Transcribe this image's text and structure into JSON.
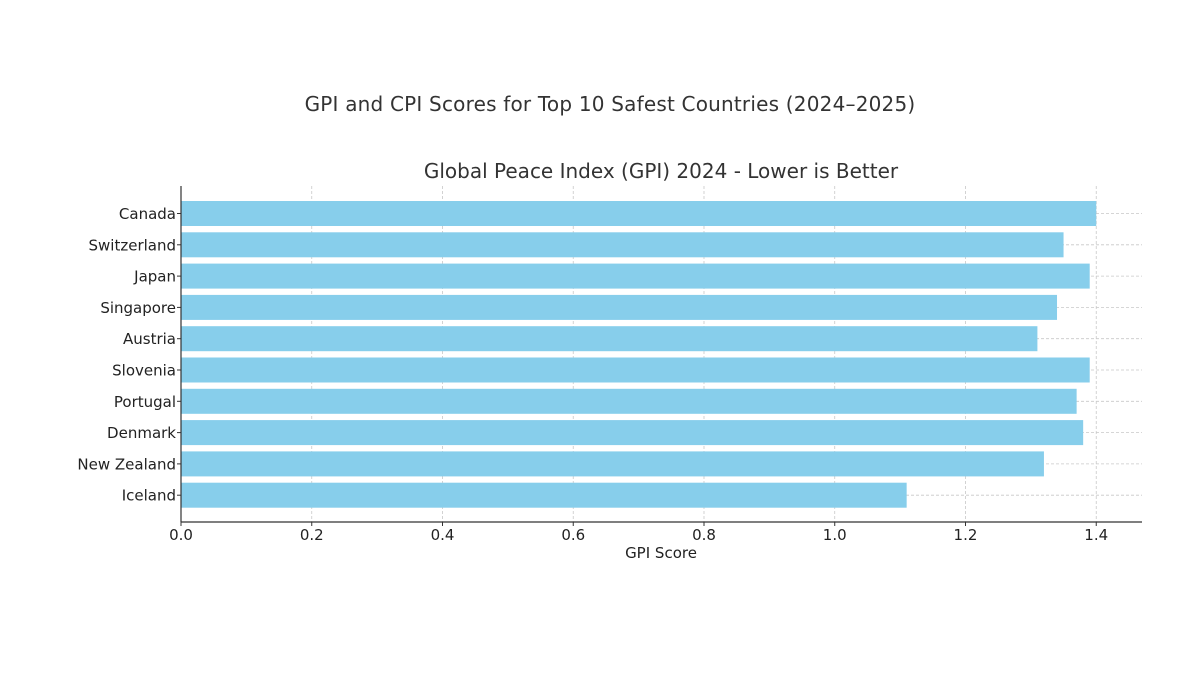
{
  "figure": {
    "suptitle": "GPI and CPI Scores for Top 10 Safest Countries (2024–2025)"
  },
  "chart_data": {
    "type": "bar",
    "orientation": "horizontal",
    "title": "Global Peace Index (GPI) 2024 - Lower is Better",
    "xlabel": "GPI Score",
    "ylabel": "",
    "categories": [
      "Canada",
      "Switzerland",
      "Japan",
      "Singapore",
      "Austria",
      "Slovenia",
      "Portugal",
      "Denmark",
      "New Zealand",
      "Iceland"
    ],
    "values": [
      1.4,
      1.35,
      1.39,
      1.34,
      1.31,
      1.39,
      1.37,
      1.38,
      1.32,
      1.11
    ],
    "xlim": [
      0.0,
      1.47
    ],
    "xticks": [
      "0.0",
      "0.2",
      "0.4",
      "0.6",
      "0.8",
      "1.0",
      "1.2",
      "1.4"
    ],
    "grid": true,
    "grid_style": "dashed",
    "bar_color": "#87CEEB"
  }
}
